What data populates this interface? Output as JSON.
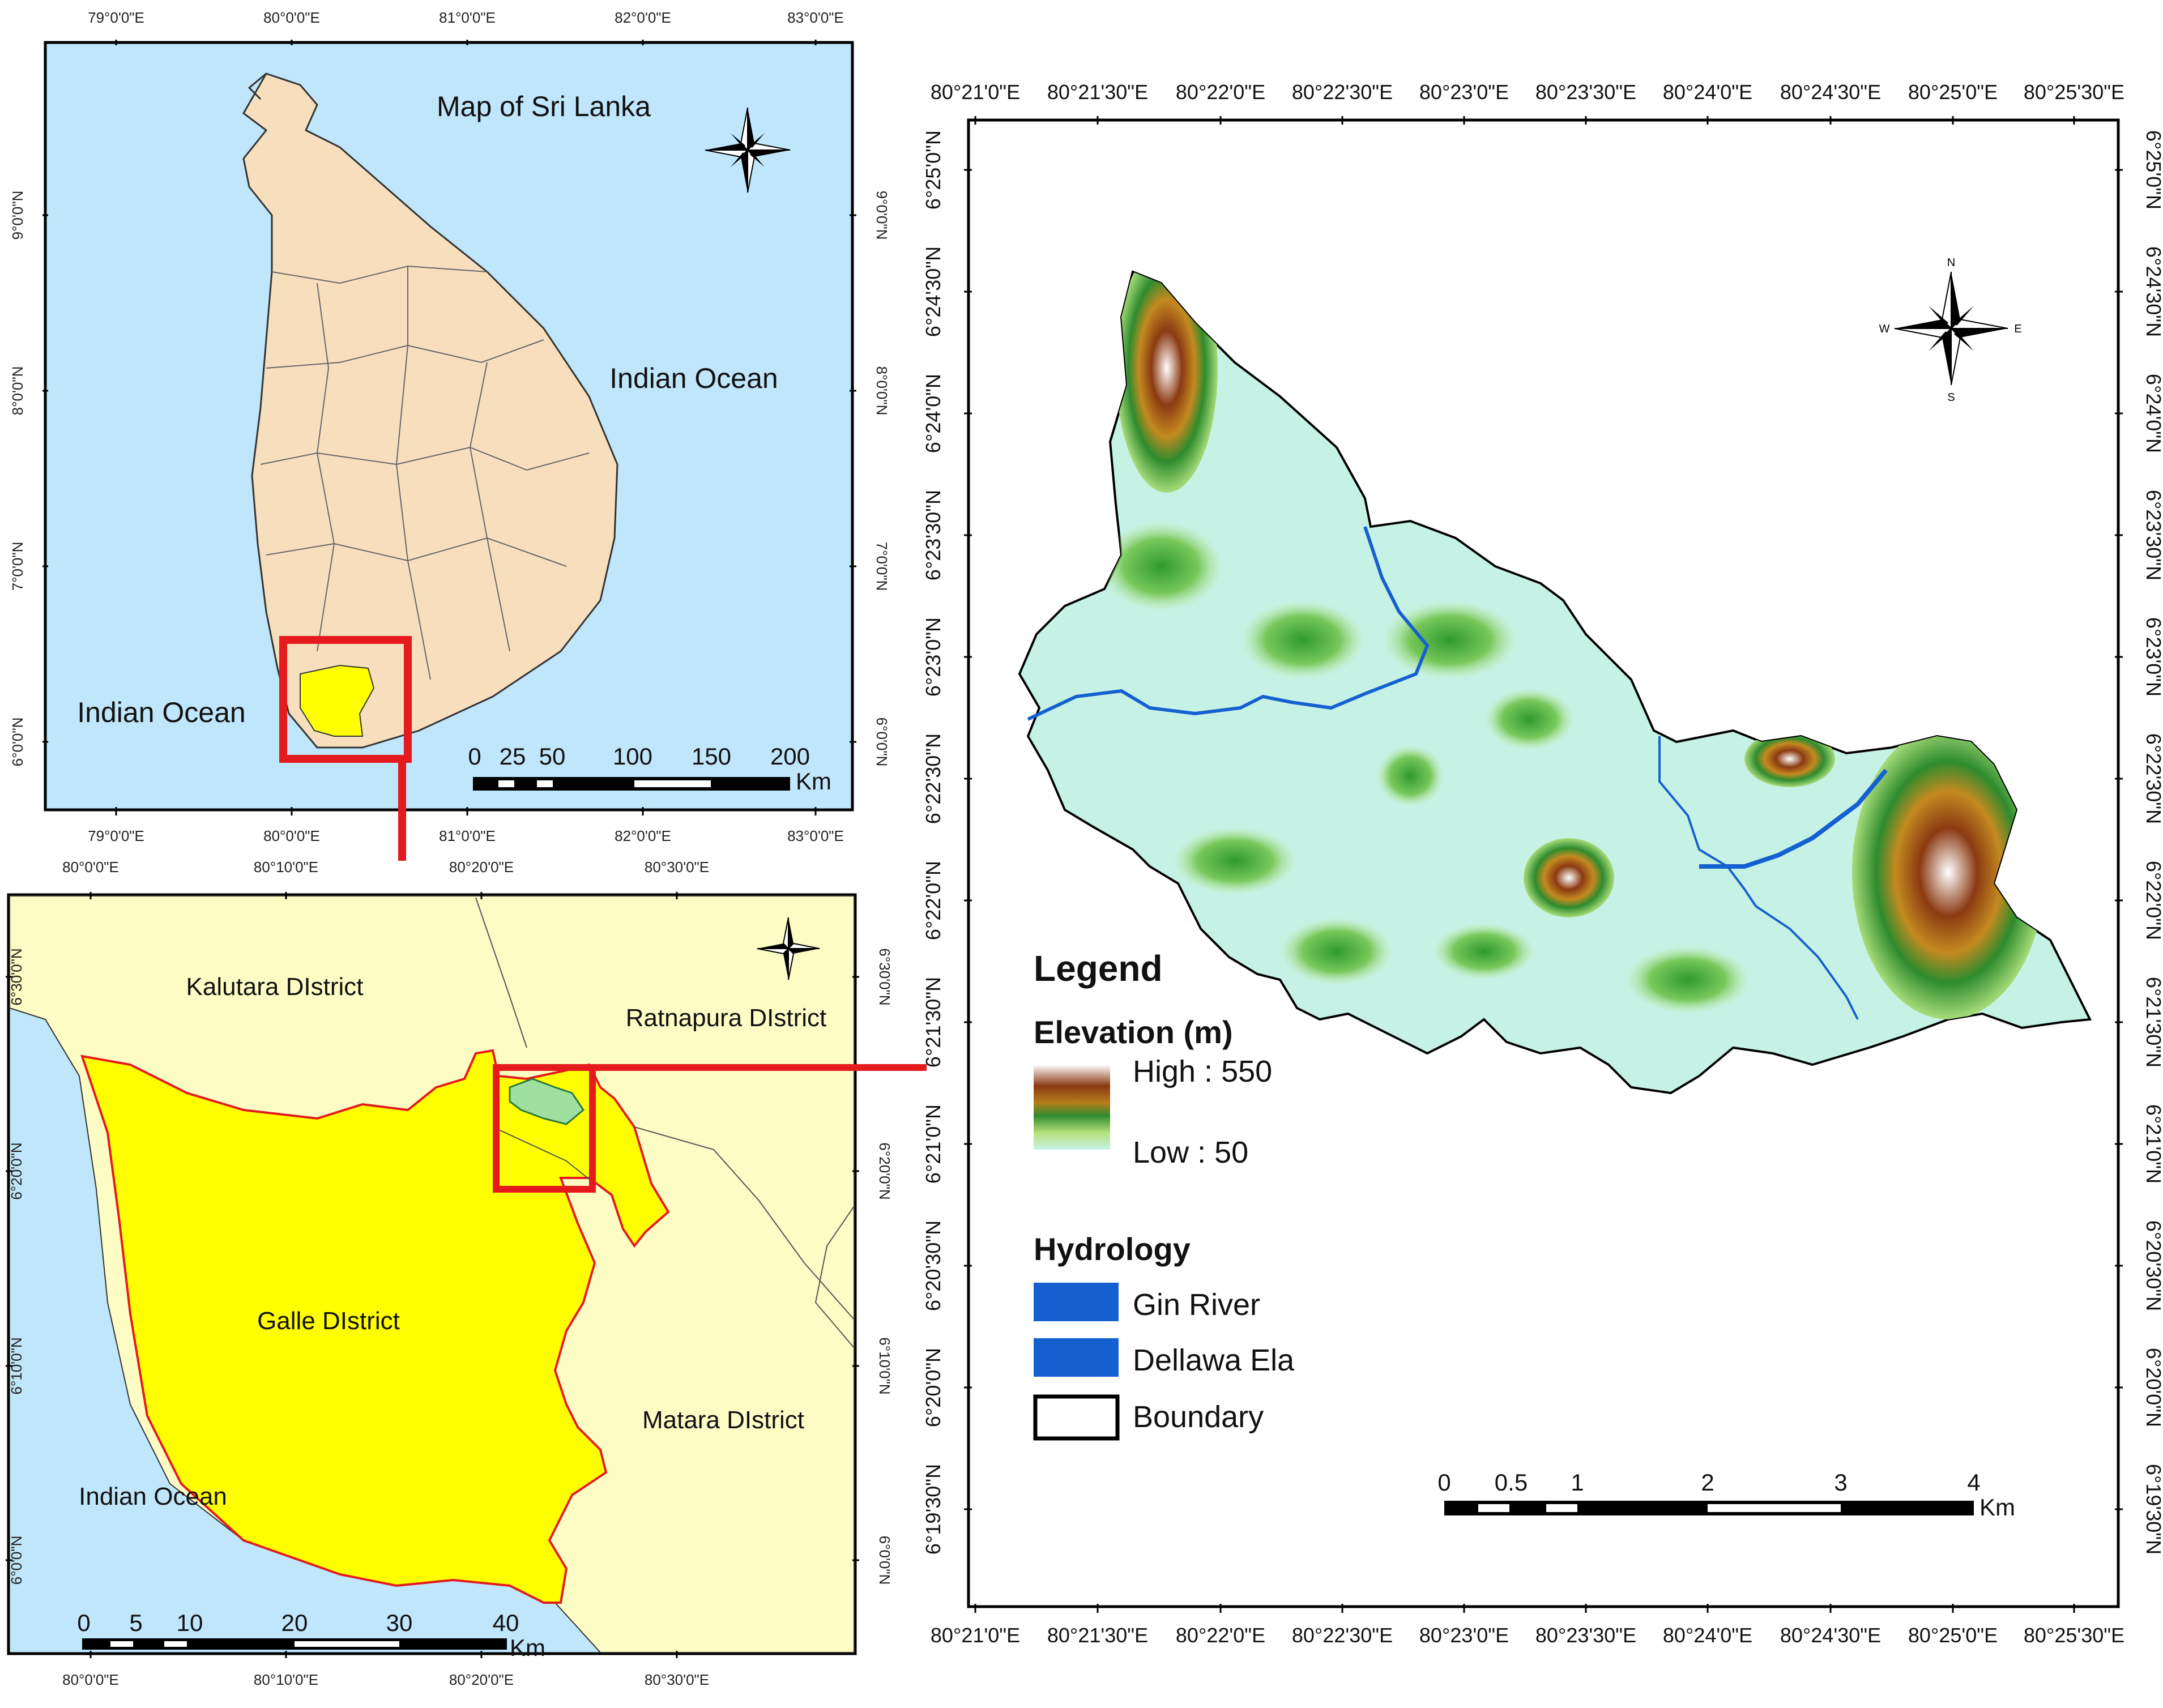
{
  "colors": {
    "ocean": "#bfe6fb",
    "land_sl": "#f7dfbe",
    "district_bg": "#fcfcc4",
    "galle": "#ffff00",
    "galle_border": "#e41a1c",
    "highlight_box": "#e41a1c",
    "river": "#1560d0"
  },
  "inset_sri_lanka": {
    "title": "Map of Sri Lanka",
    "ocean_label_1": "Indian Ocean",
    "ocean_label_2": "Indian Ocean",
    "top_ticks": [
      "79°0'0\"E",
      "80°0'0\"E",
      "81°0'0\"E",
      "82°0'0\"E",
      "83°0'0\"E"
    ],
    "bottom_ticks": [
      "79°0'0\"E",
      "80°0'0\"E",
      "81°0'0\"E",
      "82°0'0\"E",
      "83°0'0\"E"
    ],
    "left_ticks": [
      "9°0'0\"N",
      "8°0'0\"N",
      "7°0'0\"N",
      "6°0'0\"N"
    ],
    "right_ticks": [
      "9°0'0\"N",
      "8°0'0\"N",
      "7°0'0\"N",
      "6°0'0\"N"
    ],
    "scale_labels": [
      "0",
      "25",
      "50",
      "100",
      "150",
      "200"
    ],
    "scale_unit": "Km"
  },
  "inset_galle": {
    "kalutara": "Kalutara DIstrict",
    "ratnapura": "Ratnapura DIstrict",
    "galle": "Galle DIstrict",
    "matara": "Matara DIstrict",
    "ocean": "Indian Ocean",
    "top_ticks": [
      "80°0'0\"E",
      "80°10'0\"E",
      "80°20'0\"E",
      "80°30'0\"E"
    ],
    "bottom_ticks": [
      "80°0'0\"E",
      "80°10'0\"E",
      "80°20'0\"E",
      "80°30'0\"E"
    ],
    "left_ticks": [
      "6°30'0\"N",
      "6°20'0\"N",
      "6°10'0\"N",
      "6°0'0\"N"
    ],
    "right_ticks": [
      "6°30'0\"N",
      "6°20'0\"N",
      "6°10'0\"N",
      "6°0'0\"N"
    ],
    "scale_labels": [
      "0",
      "5",
      "10",
      "20",
      "30",
      "40"
    ],
    "scale_unit": "Km"
  },
  "main_map": {
    "top_ticks": [
      "80°21'0\"E",
      "80°21'30\"E",
      "80°22'0\"E",
      "80°22'30\"E",
      "80°23'0\"E",
      "80°23'30\"E",
      "80°24'0\"E",
      "80°24'30\"E",
      "80°25'0\"E",
      "80°25'30\"E"
    ],
    "bottom_ticks": [
      "80°21'0\"E",
      "80°21'30\"E",
      "80°22'0\"E",
      "80°22'30\"E",
      "80°23'0\"E",
      "80°23'30\"E",
      "80°24'0\"E",
      "80°24'30\"E",
      "80°25'0\"E",
      "80°25'30\"E"
    ],
    "left_ticks": [
      "6°25'0\"N",
      "6°24'30\"N",
      "6°24'0\"N",
      "6°23'30\"N",
      "6°23'0\"N",
      "6°22'30\"N",
      "6°22'0\"N",
      "6°21'30\"N",
      "6°21'0\"N",
      "6°20'30\"N",
      "6°20'0\"N",
      "6°19'30\"N"
    ],
    "right_ticks": [
      "6°25'0\"N",
      "6°24'30\"N",
      "6°24'0\"N",
      "6°23'30\"N",
      "6°23'0\"N",
      "6°22'30\"N",
      "6°22'0\"N",
      "6°21'30\"N",
      "6°21'0\"N",
      "6°20'30\"N",
      "6°20'0\"N",
      "6°19'30\"N"
    ],
    "scale_labels": [
      "0",
      "0.5",
      "1",
      "2",
      "3",
      "4"
    ],
    "scale_unit": "Km"
  },
  "legend": {
    "title": "Legend",
    "elevation_heading": "Elevation (m)",
    "high": "High : 550",
    "low": "Low : 50",
    "hydrology_heading": "Hydrology",
    "gin_river": "Gin River",
    "dellawa_ela": "Dellawa Ela",
    "boundary": "Boundary"
  },
  "compass": {
    "north": "N",
    "south": "S",
    "east": "E",
    "west": "W"
  }
}
